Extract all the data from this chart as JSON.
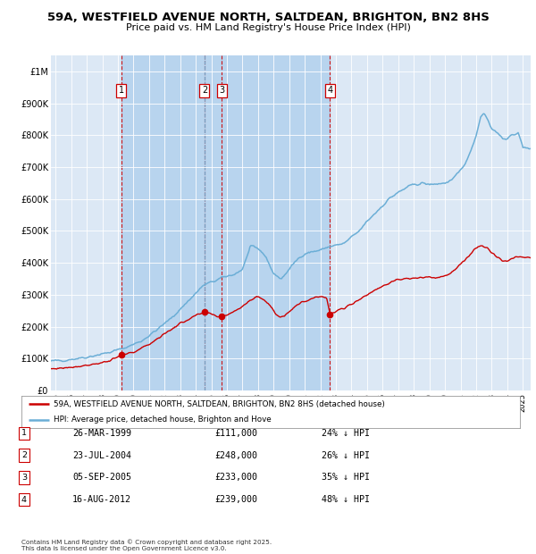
{
  "title": "59A, WESTFIELD AVENUE NORTH, SALTDEAN, BRIGHTON, BN2 8HS",
  "subtitle": "Price paid vs. HM Land Registry's House Price Index (HPI)",
  "legend_line1": "59A, WESTFIELD AVENUE NORTH, SALTDEAN, BRIGHTON, BN2 8HS (detached house)",
  "legend_line2": "HPI: Average price, detached house, Brighton and Hove",
  "footer1": "Contains HM Land Registry data © Crown copyright and database right 2025.",
  "footer2": "This data is licensed under the Open Government Licence v3.0.",
  "table_rows": [
    {
      "num": "1",
      "date_str": "26-MAR-1999",
      "price_str": "£111,000",
      "pct_str": "24% ↓ HPI"
    },
    {
      "num": "2",
      "date_str": "23-JUL-2004",
      "price_str": "£248,000",
      "pct_str": "26% ↓ HPI"
    },
    {
      "num": "3",
      "date_str": "05-SEP-2005",
      "price_str": "£233,000",
      "pct_str": "35% ↓ HPI"
    },
    {
      "num": "4",
      "date_str": "16-AUG-2012",
      "price_str": "£239,000",
      "pct_str": "48% ↓ HPI"
    }
  ],
  "hpi_color": "#6baed6",
  "price_color": "#cc0000",
  "bg_color": "#dce8f5",
  "plot_bg": "#ffffff",
  "grid_color": "#b8cfe0",
  "dashed_red": "#cc0000",
  "dashed_blue": "#6baed6",
  "box_color": "#cc0000",
  "shade_color": "#b8d4ee",
  "ylim": [
    0,
    1050000
  ],
  "yticks": [
    0,
    100000,
    200000,
    300000,
    400000,
    500000,
    600000,
    700000,
    800000,
    900000,
    1000000
  ],
  "ytick_labels": [
    "£0",
    "£100K",
    "£200K",
    "£300K",
    "£400K",
    "£500K",
    "£600K",
    "£700K",
    "£800K",
    "£900K",
    "£1M"
  ],
  "xstart": 1994.7,
  "xend": 2025.5,
  "transaction_years": [
    1999.23,
    2004.56,
    2005.68,
    2012.62
  ],
  "transaction_prices": [
    111000,
    248000,
    233000,
    239000
  ]
}
